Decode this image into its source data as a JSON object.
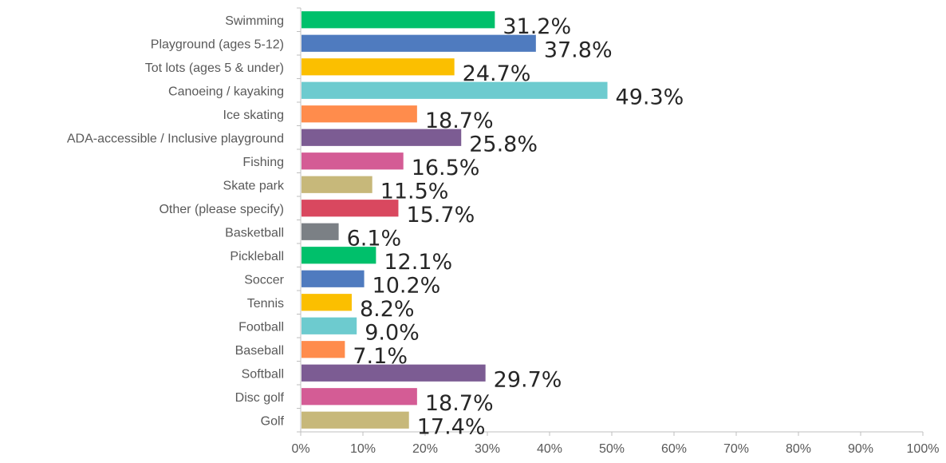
{
  "chart_data": {
    "type": "bar",
    "orientation": "horizontal",
    "title": "",
    "xlabel": "",
    "ylabel": "",
    "xlim": [
      0,
      100
    ],
    "x_ticks": [
      "0%",
      "10%",
      "20%",
      "30%",
      "40%",
      "50%",
      "60%",
      "70%",
      "80%",
      "90%",
      "100%"
    ],
    "grid": false,
    "categories": [
      "Swimming",
      "Playground (ages 5-12)",
      "Tot lots (ages 5 & under)",
      "Canoeing / kayaking",
      "Ice skating",
      "ADA-accessible / Inclusive playground",
      "Fishing",
      "Skate park",
      "Other (please specify)",
      "Basketball",
      "Pickleball",
      "Soccer",
      "Tennis",
      "Football",
      "Baseball",
      "Softball",
      "Disc golf",
      "Golf"
    ],
    "values": [
      31.2,
      37.8,
      24.7,
      49.3,
      18.7,
      25.8,
      16.5,
      11.5,
      15.7,
      6.1,
      12.1,
      10.2,
      8.2,
      9.0,
      7.1,
      29.7,
      18.7,
      17.4
    ],
    "value_labels": [
      "31.2%",
      "37.8%",
      "24.7%",
      "49.3%",
      "18.7%",
      "25.8%",
      "16.5%",
      "11.5%",
      "15.7%",
      "6.1%",
      "12.1%",
      "10.2%",
      "8.2%",
      "9.0%",
      "7.1%",
      "29.7%",
      "18.7%",
      "17.4%"
    ],
    "colors": [
      "#00c06b",
      "#4f7bbf",
      "#fbbf00",
      "#6dcbcf",
      "#ff8c4c",
      "#7c5c93",
      "#d45c95",
      "#c7b87a",
      "#d9485f",
      "#7b8085",
      "#00c06b",
      "#4f7bbf",
      "#fbbf00",
      "#6dcbcf",
      "#ff8c4c",
      "#7c5c93",
      "#d45c95",
      "#c7b87a"
    ]
  }
}
